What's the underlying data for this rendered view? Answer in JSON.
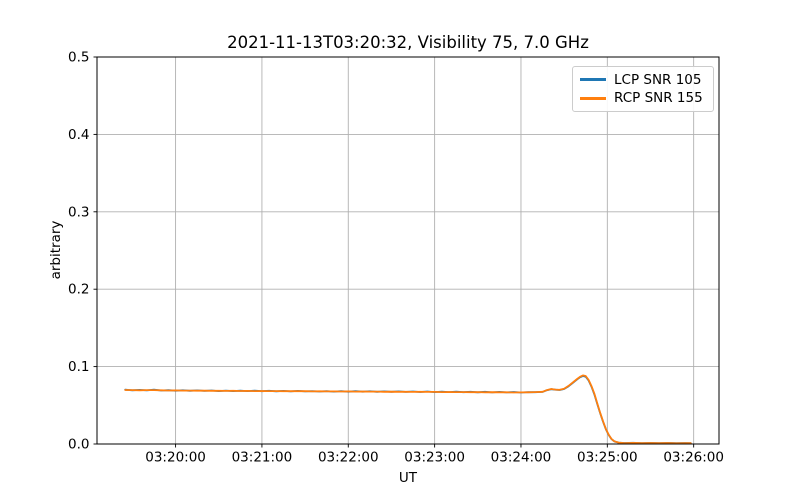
{
  "chart_data": {
    "type": "line",
    "title": "2021-11-13T03:20:32, Visibility 75, 7.0 GHz",
    "xlabel": "UT",
    "ylabel": "arbitrary",
    "x_unit": "seconds relative to 03:20:00 UT",
    "xlim": [
      -54.6,
      377.6
    ],
    "ylim": [
      0,
      0.5
    ],
    "grid": true,
    "grid_color": "#b0b0b0",
    "legend_position": "upper right",
    "xticks": [
      {
        "t": 0,
        "label": "03:20:00"
      },
      {
        "t": 60,
        "label": "03:21:00"
      },
      {
        "t": 120,
        "label": "03:22:00"
      },
      {
        "t": 180,
        "label": "03:23:00"
      },
      {
        "t": 240,
        "label": "03:24:00"
      },
      {
        "t": 300,
        "label": "03:25:00"
      },
      {
        "t": 360,
        "label": "03:26:00"
      }
    ],
    "yticks": [
      {
        "v": 0.0,
        "label": "0.0"
      },
      {
        "v": 0.1,
        "label": "0.1"
      },
      {
        "v": 0.2,
        "label": "0.2"
      },
      {
        "v": 0.3,
        "label": "0.3"
      },
      {
        "v": 0.4,
        "label": "0.4"
      },
      {
        "v": 0.5,
        "label": "0.5"
      }
    ],
    "series": [
      {
        "name": "LCP SNR 105",
        "color": "#1f77b4",
        "points": [
          [
            -35,
            0.0701
          ],
          [
            -30,
            0.0694
          ],
          [
            -25,
            0.0699
          ],
          [
            -20,
            0.0693
          ],
          [
            -15,
            0.0702
          ],
          [
            -10,
            0.0691
          ],
          [
            -5,
            0.0695
          ],
          [
            0,
            0.0689
          ],
          [
            5,
            0.0694
          ],
          [
            10,
            0.0687
          ],
          [
            15,
            0.0692
          ],
          [
            20,
            0.0686
          ],
          [
            25,
            0.0691
          ],
          [
            30,
            0.0684
          ],
          [
            35,
            0.069
          ],
          [
            40,
            0.0684
          ],
          [
            45,
            0.0689
          ],
          [
            50,
            0.0683
          ],
          [
            55,
            0.0688
          ],
          [
            60,
            0.0682
          ],
          [
            65,
            0.0687
          ],
          [
            70,
            0.0681
          ],
          [
            75,
            0.0686
          ],
          [
            80,
            0.068
          ],
          [
            85,
            0.0686
          ],
          [
            90,
            0.0679
          ],
          [
            95,
            0.0684
          ],
          [
            100,
            0.0678
          ],
          [
            105,
            0.0684
          ],
          [
            110,
            0.0677
          ],
          [
            115,
            0.0683
          ],
          [
            120,
            0.0676
          ],
          [
            125,
            0.0682
          ],
          [
            130,
            0.0676
          ],
          [
            135,
            0.0681
          ],
          [
            140,
            0.0675
          ],
          [
            145,
            0.068
          ],
          [
            150,
            0.0674
          ],
          [
            155,
            0.0679
          ],
          [
            160,
            0.0673
          ],
          [
            165,
            0.0678
          ],
          [
            170,
            0.0672
          ],
          [
            175,
            0.0678
          ],
          [
            180,
            0.0671
          ],
          [
            185,
            0.0677
          ],
          [
            190,
            0.067
          ],
          [
            195,
            0.0676
          ],
          [
            200,
            0.0669
          ],
          [
            205,
            0.0675
          ],
          [
            210,
            0.0668
          ],
          [
            215,
            0.0674
          ],
          [
            220,
            0.0667
          ],
          [
            225,
            0.0673
          ],
          [
            230,
            0.0667
          ],
          [
            235,
            0.0672
          ],
          [
            240,
            0.0666
          ],
          [
            245,
            0.0671
          ],
          [
            250,
            0.0669
          ],
          [
            255,
            0.0673
          ],
          [
            258,
            0.0695
          ],
          [
            261,
            0.0708
          ],
          [
            264,
            0.0701
          ],
          [
            267,
            0.0698
          ],
          [
            270,
            0.071
          ],
          [
            273,
            0.0745
          ],
          [
            276,
            0.079
          ],
          [
            279,
            0.0835
          ],
          [
            281,
            0.0862
          ],
          [
            283,
            0.0878
          ],
          [
            285,
            0.087
          ],
          [
            287,
            0.082
          ],
          [
            289,
            0.074
          ],
          [
            291,
            0.064
          ],
          [
            293,
            0.052
          ],
          [
            295,
            0.04
          ],
          [
            297,
            0.029
          ],
          [
            299,
            0.019
          ],
          [
            301,
            0.0115
          ],
          [
            303,
            0.0062
          ],
          [
            305,
            0.0032
          ],
          [
            308,
            0.0018
          ],
          [
            312,
            0.0013
          ],
          [
            318,
            0.0015
          ],
          [
            324,
            0.0011
          ],
          [
            330,
            0.0014
          ],
          [
            336,
            0.0011
          ],
          [
            342,
            0.0014
          ],
          [
            348,
            0.001
          ],
          [
            354,
            0.0013
          ],
          [
            358,
            0.0011
          ]
        ]
      },
      {
        "name": "RCP SNR 155",
        "color": "#ff7f0e",
        "points": [
          [
            -35,
            0.0698
          ],
          [
            -30,
            0.0697
          ],
          [
            -25,
            0.0694
          ],
          [
            -20,
            0.0696
          ],
          [
            -15,
            0.0697
          ],
          [
            -10,
            0.0694
          ],
          [
            -5,
            0.0691
          ],
          [
            0,
            0.0692
          ],
          [
            5,
            0.069
          ],
          [
            10,
            0.069
          ],
          [
            15,
            0.0688
          ],
          [
            20,
            0.0689
          ],
          [
            25,
            0.0687
          ],
          [
            30,
            0.0687
          ],
          [
            35,
            0.0686
          ],
          [
            40,
            0.0687
          ],
          [
            45,
            0.0685
          ],
          [
            50,
            0.0686
          ],
          [
            55,
            0.0684
          ],
          [
            60,
            0.0685
          ],
          [
            65,
            0.0683
          ],
          [
            70,
            0.0684
          ],
          [
            75,
            0.0682
          ],
          [
            80,
            0.0683
          ],
          [
            85,
            0.0682
          ],
          [
            90,
            0.0682
          ],
          [
            95,
            0.068
          ],
          [
            100,
            0.0681
          ],
          [
            105,
            0.0679
          ],
          [
            110,
            0.068
          ],
          [
            115,
            0.0678
          ],
          [
            120,
            0.0679
          ],
          [
            125,
            0.0677
          ],
          [
            130,
            0.0678
          ],
          [
            135,
            0.0677
          ],
          [
            140,
            0.0677
          ],
          [
            145,
            0.0675
          ],
          [
            150,
            0.0676
          ],
          [
            155,
            0.0674
          ],
          [
            160,
            0.0675
          ],
          [
            165,
            0.0673
          ],
          [
            170,
            0.0674
          ],
          [
            175,
            0.0673
          ],
          [
            180,
            0.0673
          ],
          [
            185,
            0.0671
          ],
          [
            190,
            0.0672
          ],
          [
            195,
            0.067
          ],
          [
            200,
            0.0671
          ],
          [
            205,
            0.0669
          ],
          [
            210,
            0.067
          ],
          [
            215,
            0.0668
          ],
          [
            220,
            0.0669
          ],
          [
            225,
            0.0668
          ],
          [
            230,
            0.0668
          ],
          [
            235,
            0.0666
          ],
          [
            240,
            0.0667
          ],
          [
            245,
            0.0668
          ],
          [
            250,
            0.067
          ],
          [
            255,
            0.0674
          ],
          [
            258,
            0.0697
          ],
          [
            261,
            0.0711
          ],
          [
            264,
            0.0703
          ],
          [
            267,
            0.07
          ],
          [
            270,
            0.0713
          ],
          [
            273,
            0.075
          ],
          [
            276,
            0.0795
          ],
          [
            279,
            0.084
          ],
          [
            281,
            0.0868
          ],
          [
            283,
            0.0886
          ],
          [
            285,
            0.0878
          ],
          [
            287,
            0.0828
          ],
          [
            289,
            0.0748
          ],
          [
            291,
            0.0648
          ],
          [
            293,
            0.0528
          ],
          [
            295,
            0.0406
          ],
          [
            297,
            0.0295
          ],
          [
            299,
            0.0193
          ],
          [
            301,
            0.0117
          ],
          [
            303,
            0.0063
          ],
          [
            305,
            0.0033
          ],
          [
            308,
            0.0018
          ],
          [
            312,
            0.0012
          ],
          [
            318,
            0.0014
          ],
          [
            324,
            0.001
          ],
          [
            330,
            0.0013
          ],
          [
            336,
            0.001
          ],
          [
            342,
            0.0013
          ],
          [
            348,
            0.0009
          ],
          [
            354,
            0.0012
          ],
          [
            358,
            0.001
          ]
        ]
      }
    ]
  }
}
